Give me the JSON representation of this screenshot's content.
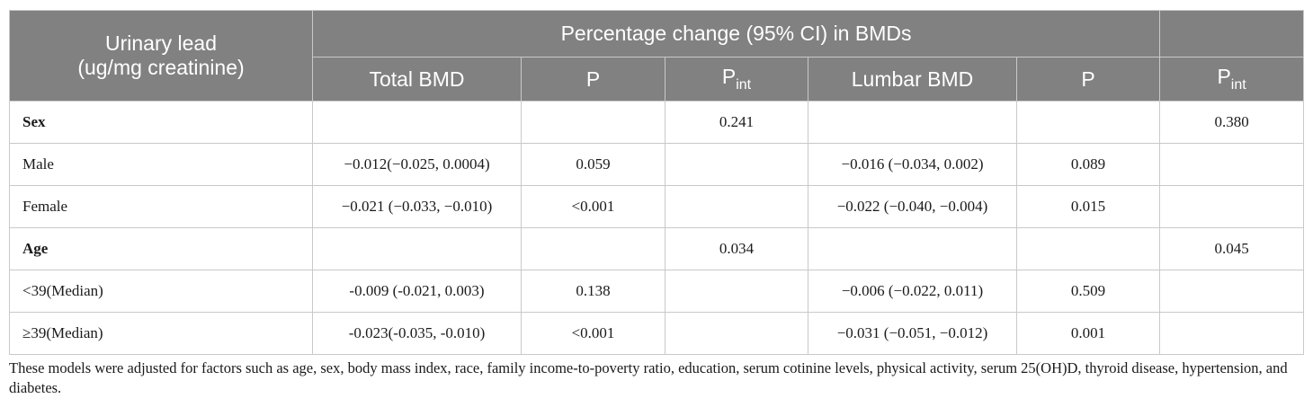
{
  "header": {
    "row_label": "Urinary lead\n(ug/mg creatinine)",
    "group_label": "Percentage change (95% CI) in BMDs",
    "col_total_bmd": "Total BMD",
    "col_p1": "P",
    "col_pint1_base": "P",
    "col_pint1_sub": "int",
    "col_lumbar_bmd": "Lumbar BMD",
    "col_p2": "P",
    "col_pint2_base": "P",
    "col_pint2_sub": "int"
  },
  "rows": [
    {
      "label": "Sex",
      "bold": true,
      "total": "",
      "p1": "",
      "pint1": "0.241",
      "lumbar": "",
      "p2": "",
      "pint2": "0.380"
    },
    {
      "label": "Male",
      "bold": false,
      "total": "−0.012(−0.025, 0.0004)",
      "p1": "0.059",
      "pint1": "",
      "lumbar": "−0.016 (−0.034, 0.002)",
      "p2": "0.089",
      "pint2": ""
    },
    {
      "label": "Female",
      "bold": false,
      "total": "−0.021 (−0.033, −0.010)",
      "p1": "<0.001",
      "pint1": "",
      "lumbar": "−0.022 (−0.040, −0.004)",
      "p2": "0.015",
      "pint2": ""
    },
    {
      "label": "Age",
      "bold": true,
      "total": "",
      "p1": "",
      "pint1": "0.034",
      "lumbar": "",
      "p2": "",
      "pint2": "0.045"
    },
    {
      "label": "<39(Median)",
      "bold": false,
      "total": "-0.009 (-0.021, 0.003)",
      "p1": "0.138",
      "pint1": "",
      "lumbar": "−0.006 (−0.022, 0.011)",
      "p2": "0.509",
      "pint2": ""
    },
    {
      "label": "≥39(Median)",
      "bold": false,
      "total": "-0.023(-0.035, -0.010)",
      "p1": "<0.001",
      "pint1": "",
      "lumbar": "−0.031 (−0.051, −0.012)",
      "p2": "0.001",
      "pint2": ""
    }
  ],
  "footnote": "These models were adjusted for factors such as age, sex, body mass index, race, family income-to-poverty ratio, education, serum cotinine levels, physical activity, serum 25(OH)D, thyroid disease, hypertension, and diabetes.",
  "colors": {
    "header_bg": "#818181",
    "header_text": "#ffffff",
    "border": "#c9c9c9"
  }
}
